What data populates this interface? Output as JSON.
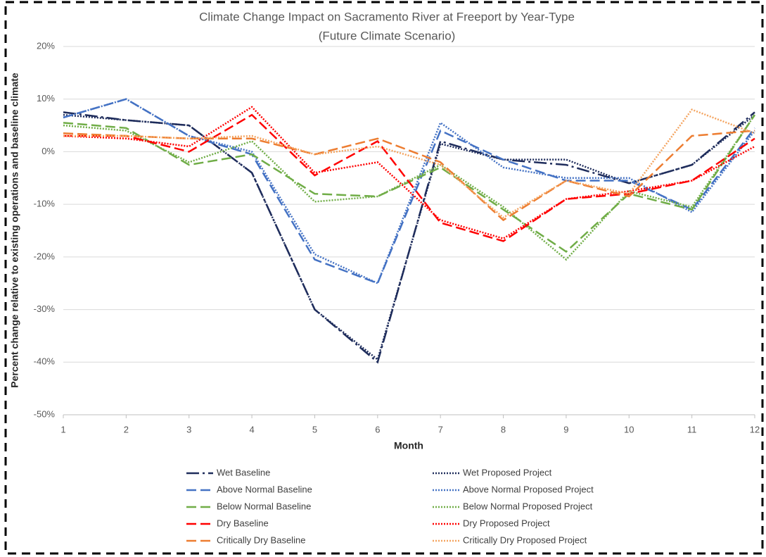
{
  "chart_data": {
    "type": "line",
    "title": "Climate Change Impact on Sacramento River at Freeport by Year-Type",
    "subtitle": "(Future Climate Scenario)",
    "x_label": "Month",
    "y_label": "Percent change relative to existing operations and baseline climate",
    "x": [
      1,
      2,
      3,
      4,
      5,
      6,
      7,
      8,
      9,
      10,
      11,
      12
    ],
    "xlim": [
      1,
      12
    ],
    "xticks": [
      1,
      2,
      3,
      4,
      5,
      6,
      7,
      8,
      9,
      10,
      11,
      12
    ],
    "ylim": [
      -50,
      20
    ],
    "yticks": [
      {
        "value": -50,
        "label": "-50%"
      },
      {
        "value": -40,
        "label": "-40%"
      },
      {
        "value": -30,
        "label": "-30%"
      },
      {
        "value": -20,
        "label": "-20%"
      },
      {
        "value": -10,
        "label": "-10%"
      },
      {
        "value": 0,
        "label": "0%"
      },
      {
        "value": 10,
        "label": "10%"
      },
      {
        "value": 20,
        "label": "20%"
      }
    ],
    "grid": true,
    "legend": "bottom",
    "series": [
      {
        "name": "Wet Baseline",
        "color": "#1f2d5c",
        "dash": "dash-dot",
        "values": [
          7.5,
          6,
          5,
          -4,
          -30,
          -40,
          2,
          -1.5,
          -2.5,
          -6,
          -2.5,
          7.5
        ]
      },
      {
        "name": "Wet Proposed Project",
        "color": "#1f2d5c",
        "dash": "dot",
        "values": [
          7,
          6,
          5,
          -4,
          -30,
          -39.5,
          1.5,
          -1.5,
          -1.5,
          -6,
          -2.5,
          7
        ]
      },
      {
        "name": "Above Normal Baseline",
        "color": "#4472c4",
        "dash": "dash",
        "values": [
          6.5,
          10,
          3,
          -0.5,
          -20.5,
          -25,
          4,
          -1.5,
          -5.5,
          -5.5,
          -11,
          4.5
        ]
      },
      {
        "name": "Above Normal Proposed Project",
        "color": "#4472c4",
        "dash": "dot",
        "values": [
          6.5,
          10,
          3,
          0,
          -19.5,
          -25,
          5.5,
          -3,
          -5,
          -5,
          -11.5,
          4
        ]
      },
      {
        "name": "Below Normal Baseline",
        "color": "#70ad47",
        "dash": "dash",
        "values": [
          5.5,
          4.5,
          -2.5,
          -0.5,
          -8,
          -8.5,
          -3,
          -11,
          -19,
          -8,
          -11,
          7
        ]
      },
      {
        "name": "Below Normal Proposed Project",
        "color": "#70ad47",
        "dash": "dot",
        "values": [
          5,
          4,
          -2,
          2,
          -9.5,
          -8.5,
          -2.5,
          -10.5,
          -20.5,
          -7.5,
          -10.5,
          7
        ]
      },
      {
        "name": "Dry Baseline",
        "color": "#ff0000",
        "dash": "dash",
        "values": [
          3,
          3,
          0,
          7,
          -4.5,
          2,
          -13.5,
          -17,
          -9,
          -8,
          -5.5,
          2.5
        ]
      },
      {
        "name": "Dry Proposed Project",
        "color": "#ff0000",
        "dash": "dot",
        "values": [
          3,
          2.5,
          1,
          8.5,
          -4,
          -2,
          -13,
          -16.5,
          -9,
          -7.5,
          -5.5,
          1
        ]
      },
      {
        "name": "Critically Dry Baseline",
        "color": "#ed7d31",
        "dash": "dash",
        "values": [
          3.5,
          3,
          2.5,
          2.5,
          -0.5,
          2.5,
          -2,
          -13,
          -5.5,
          -8.5,
          3,
          4
        ]
      },
      {
        "name": "Critically Dry Proposed Project",
        "color": "#f4a460",
        "dash": "dot",
        "values": [
          3,
          3,
          2.5,
          3,
          -0.5,
          1,
          -2.5,
          -12.5,
          -5.5,
          -8,
          8,
          3.5
        ]
      }
    ]
  }
}
